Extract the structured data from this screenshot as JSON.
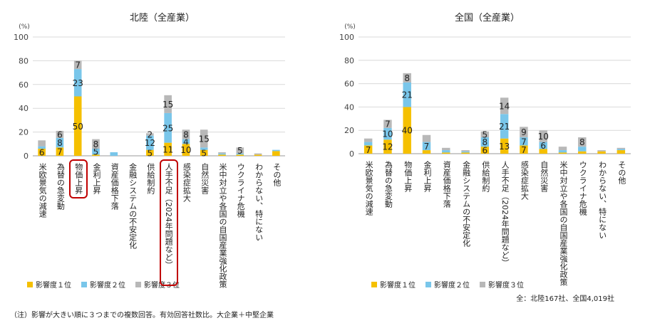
{
  "footer_note": "（注）影響が大きい順に３つまでの複数回答。有効回答社数比。大企業＋中堅企業",
  "sample_note": "全：北陸167社、全国4,019社",
  "legend": [
    {
      "label": "影響度１位",
      "color": "#f5c000"
    },
    {
      "label": "影響度２位",
      "color": "#79c6ea"
    },
    {
      "label": "影響度３位",
      "color": "#b8b8b8"
    }
  ],
  "chart_data": [
    {
      "type": "bar",
      "stacked": true,
      "title": "北陸（全産業）",
      "ylabel": "(%)",
      "ylim": [
        0,
        100
      ],
      "yticks": [
        0,
        20,
        40,
        60,
        80,
        100
      ],
      "grid": true,
      "legend_position": "bottom",
      "categories": [
        "米欧景気の減速",
        "為替の急変動",
        "物価上昇",
        "金利上昇",
        "資産価格下落",
        "金融システムの不安定化",
        "供給制約",
        "人手不足（2024年問題など）",
        "感染症拡大",
        "自然災害",
        "米中対立や各国の自国産業強化政策",
        "ウクライナ危機",
        "わからない、特にない",
        "その他"
      ],
      "highlighted_categories": [
        "物価上昇",
        "人手不足（2024年問題など）"
      ],
      "series": [
        {
          "name": "影響度１位",
          "values": [
            6,
            7,
            50,
            1,
            0,
            0,
            5,
            11,
            10,
            5,
            1,
            1,
            1,
            4
          ]
        },
        {
          "name": "影響度２位",
          "values": [
            2,
            8,
            23,
            5,
            3,
            0,
            12,
            25,
            4,
            2,
            1,
            1,
            0,
            1
          ]
        },
        {
          "name": "影響度３位",
          "values": [
            5,
            6,
            7,
            8,
            0,
            0,
            2,
            15,
            8,
            15,
            1,
            5,
            1,
            0
          ]
        }
      ],
      "data_labels": [
        [
          "6",
          "7",
          "50",
          "",
          "",
          "",
          "5",
          "11",
          "10",
          "5",
          "",
          "",
          "",
          ""
        ],
        [
          "",
          "8",
          "23",
          "5",
          "",
          "",
          "12",
          "25",
          "4",
          "",
          "",
          "",
          "",
          ""
        ],
        [
          "",
          "6",
          "7",
          "8",
          "",
          "",
          "2",
          "15",
          "8",
          "15",
          "",
          "5",
          "",
          ""
        ]
      ]
    },
    {
      "type": "bar",
      "stacked": true,
      "title": "全国（全産業）",
      "ylabel": "(%)",
      "ylim": [
        0,
        100
      ],
      "yticks": [
        0,
        20,
        40,
        60,
        80,
        100
      ],
      "grid": true,
      "legend_position": "bottom",
      "categories": [
        "米欧景気の減速",
        "為替の急変動",
        "物価上昇",
        "金利上昇",
        "資産価格下落",
        "金融システムの不安定化",
        "供給制約",
        "人手不足（2024年問題など）",
        "感染症拡大",
        "自然災害",
        "米中対立や各国の自国産業強化政策",
        "ウクライナ危機",
        "わからない、特にない",
        "その他"
      ],
      "series": [
        {
          "name": "影響度１位",
          "values": [
            7,
            12,
            40,
            3,
            1,
            1,
            6,
            13,
            7,
            4,
            1,
            2,
            2,
            3
          ]
        },
        {
          "name": "影響度２位",
          "values": [
            3,
            10,
            21,
            7,
            2,
            1,
            8,
            21,
            7,
            6,
            2,
            4,
            0,
            1
          ]
        },
        {
          "name": "影響度３位",
          "values": [
            3,
            7,
            8,
            6,
            2,
            1,
            5,
            14,
            9,
            10,
            3,
            8,
            1,
            1
          ]
        }
      ],
      "data_labels": [
        [
          "7",
          "12",
          "40",
          "",
          "",
          "",
          "6",
          "13",
          "7",
          "",
          "",
          "",
          "",
          ""
        ],
        [
          "",
          "10",
          "21",
          "7",
          "",
          "",
          "8",
          "21",
          "7",
          "6",
          "",
          "",
          "",
          ""
        ],
        [
          "",
          "7",
          "8",
          "",
          "",
          "",
          "5",
          "14",
          "9",
          "10",
          "",
          "8",
          "",
          ""
        ]
      ]
    }
  ]
}
